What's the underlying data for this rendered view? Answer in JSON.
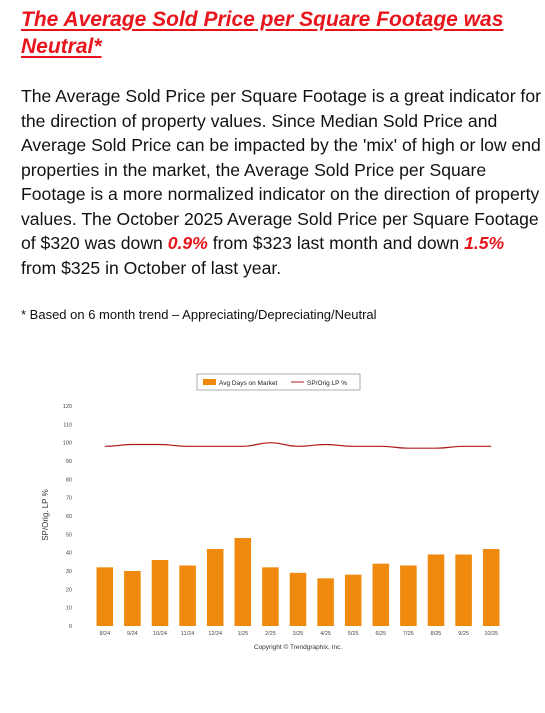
{
  "headline": {
    "line1": "The Average Sold Price per Square Footage was",
    "line2": "Neutral*"
  },
  "body": {
    "text_1": "The Average Sold Price per Square Footage is a great indicator for the direction of property values. Since Median Sold Price and Average Sold Price can be impacted by the 'mix' of high or low end properties in the market, the Average Sold Price per Square Footage is a more normalized indicator on the direction of property values. The October 2025 Average Sold Price per Square Footage of $320 was down ",
    "highlight_1": "0.9%",
    "text_2": " from $323 last month and down ",
    "highlight_2": "1.5%",
    "text_3": " from $325 in October of last year."
  },
  "footnote": "* Based on 6 month trend – Appreciating/Depreciating/Neutral",
  "colors": {
    "accent_red": "#e8151c",
    "bar_orange": "#f08a0e",
    "line_red": "#b01c1c"
  },
  "chart_data": {
    "type": "bar",
    "categories": [
      "8/24",
      "9/24",
      "10/24",
      "11/24",
      "12/24",
      "1/25",
      "2/25",
      "3/25",
      "4/25",
      "5/25",
      "6/25",
      "7/25",
      "8/25",
      "9/25",
      "10/25"
    ],
    "series": [
      {
        "name": "Avg Days on Market",
        "type": "bar",
        "color": "#f08a0e",
        "values": [
          32,
          30,
          36,
          33,
          42,
          48,
          32,
          29,
          26,
          28,
          34,
          33,
          39,
          39,
          42
        ]
      },
      {
        "name": "SP/Orig LP %",
        "type": "line",
        "color": "#b01c1c",
        "values": [
          98,
          99,
          99,
          98,
          98,
          98,
          100,
          98,
          99,
          98,
          98,
          97,
          97,
          98,
          98
        ]
      }
    ],
    "ylabel": "SP/Orig. LP %",
    "yticks": [
      0,
      10,
      20,
      30,
      40,
      50,
      60,
      70,
      80,
      90,
      100,
      110,
      120
    ],
    "ylim": [
      0,
      120
    ],
    "legend": "top-center",
    "grid": false,
    "copyright": "Copyright © Trendgraphix, Inc."
  }
}
